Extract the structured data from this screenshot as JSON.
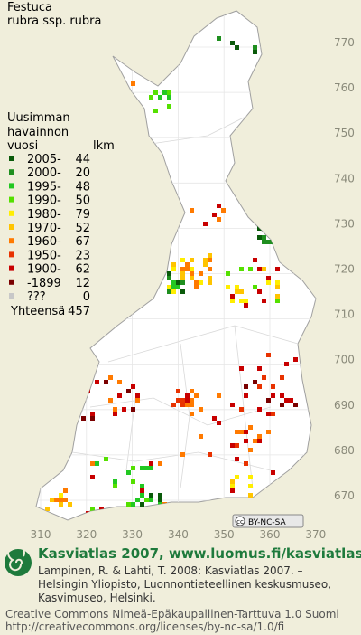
{
  "map": {
    "title": [
      "Festuca",
      "rubra ssp. rubra"
    ],
    "legend": {
      "header": [
        "Uusimman",
        "havainnon",
        "vuosi"
      ],
      "count_header": "lkm",
      "items": [
        {
          "label": "2005-",
          "count": 44,
          "color": "#0a5a0a"
        },
        {
          "label": "2000-",
          "count": 20,
          "color": "#1f8f1f"
        },
        {
          "label": "1995-",
          "count": 48,
          "color": "#22c822"
        },
        {
          "label": "1990-",
          "count": 50,
          "color": "#55e000"
        },
        {
          "label": "1980-",
          "count": 79,
          "color": "#ffee00"
        },
        {
          "label": "1970-",
          "count": 52,
          "color": "#ffc400"
        },
        {
          "label": "1960-",
          "count": 67,
          "color": "#ff7a00"
        },
        {
          "label": "1950-",
          "count": 23,
          "color": "#e83200"
        },
        {
          "label": "1900-",
          "count": 62,
          "color": "#c80000"
        },
        {
          "label": "-1899",
          "count": 12,
          "color": "#7a0000"
        },
        {
          "label": "???",
          "count": 0,
          "color": "#c8c8c8"
        }
      ],
      "total_label": "Yhteensä",
      "total": 457
    },
    "yticks": [
      770,
      760,
      750,
      740,
      730,
      720,
      710,
      700,
      690,
      680,
      670
    ],
    "xticks": [
      310,
      320,
      330,
      340,
      350,
      360,
      370
    ],
    "badge": [
      "cc",
      "BY-NC-SA"
    ],
    "footer": {
      "heading": "Kasviatlas 2007, www.luomus.fi/kasviatlas",
      "citation": [
        "Lampinen, R. & Lahti, T. 2008: Kasviatlas 2007. –",
        "Helsingin Yliopisto, Luonnontieteellinen keskusmuseo,",
        "Kasvimuseo, Helsinki."
      ],
      "license": [
        "Creative Commons Nimeä-Epäkaupallinen-Tarttuva 1.0 Suomi",
        "http://creativecommons.org/licenses/by-nc-sa/1.0/fi"
      ]
    }
  }
}
